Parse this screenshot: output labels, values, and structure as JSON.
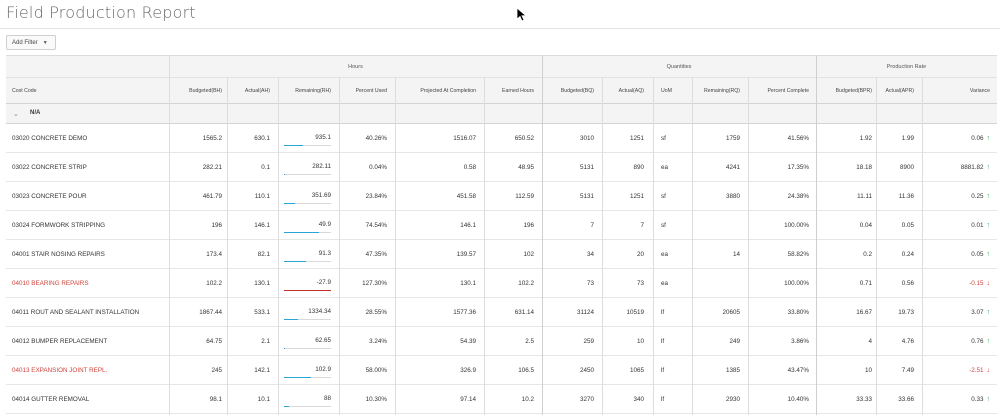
{
  "page": {
    "title": "Field Production Report"
  },
  "filter": {
    "label": "Add Filter"
  },
  "groups": {
    "hours": "Hours",
    "quantities": "Quantities",
    "production_rate": "Production Rate"
  },
  "columns": {
    "cost_code": "Cost Code",
    "budgeted_bh": "Budgeted(BH)",
    "actual_ah": "Actual(AH)",
    "remaining_rh": "Remaining(RH)",
    "percent_used": "Percent Used",
    "projected": "Projected At Completion",
    "earned": "Earned Hours",
    "budgeted_bq": "Budgeted(BQ)",
    "actual_aq": "Actual(AQ)",
    "uom": "UoM",
    "remaining_rq": "Remaining(RQ)",
    "percent_complete": "Percent Complete",
    "budgeted_bpr": "Budgeted(BPR)",
    "actual_apr": "Actual(APR)",
    "variance": "Variance"
  },
  "group_row": {
    "label": "N/A"
  },
  "rows": [
    {
      "cost_code": "03020 CONCRETE DEMO",
      "flag": false,
      "bh": "1565.2",
      "ah": "630.1",
      "rh": "935.1",
      "rh_pct": 40,
      "pct_used": "40.26%",
      "projected": "1516.07",
      "earned": "650.52",
      "bq": "3010",
      "aq": "1251",
      "uom": "sf",
      "rq": "1759",
      "pct_complete": "41.56%",
      "bpr": "1.92",
      "apr": "1.99",
      "variance": "0.06",
      "trend": "up"
    },
    {
      "cost_code": "03022 CONCRETE STRIP",
      "flag": false,
      "bh": "282.21",
      "ah": "0.1",
      "rh": "282.11",
      "rh_pct": 1,
      "pct_used": "0.04%",
      "projected": "0.58",
      "earned": "48.95",
      "bq": "5131",
      "aq": "890",
      "uom": "ea",
      "rq": "4241",
      "pct_complete": "17.35%",
      "bpr": "18.18",
      "apr": "8900",
      "variance": "8881.82",
      "trend": "up"
    },
    {
      "cost_code": "03023 CONCRETE POUR",
      "flag": false,
      "bh": "461.79",
      "ah": "110.1",
      "rh": "351.69",
      "rh_pct": 24,
      "pct_used": "23.84%",
      "projected": "451.58",
      "earned": "112.59",
      "bq": "5131",
      "aq": "1251",
      "uom": "sf",
      "rq": "3880",
      "pct_complete": "24.38%",
      "bpr": "11.11",
      "apr": "11.36",
      "variance": "0.25",
      "trend": "up"
    },
    {
      "cost_code": "03024 FORMWORK STRIPPING",
      "flag": false,
      "bh": "196",
      "ah": "146.1",
      "rh": "49.9",
      "rh_pct": 75,
      "pct_used": "74.54%",
      "projected": "146.1",
      "earned": "196",
      "bq": "7",
      "aq": "7",
      "uom": "sf",
      "rq": "",
      "pct_complete": "100.00%",
      "bpr": "0.04",
      "apr": "0.05",
      "variance": "0.01",
      "trend": "up"
    },
    {
      "cost_code": "04001 STAIR NOSING REPAIRS",
      "flag": false,
      "bh": "173.4",
      "ah": "82.1",
      "rh": "91.3",
      "rh_pct": 47,
      "pct_used": "47.35%",
      "projected": "139.57",
      "earned": "102",
      "bq": "34",
      "aq": "20",
      "uom": "ea",
      "rq": "14",
      "pct_complete": "58.82%",
      "bpr": "0.2",
      "apr": "0.24",
      "variance": "0.05",
      "trend": "up"
    },
    {
      "cost_code": "04010 BEARING REPAIRS",
      "flag": true,
      "bh": "102.2",
      "ah": "130.1",
      "rh": "-27.9",
      "rh_pct": 100,
      "pct_used": "127.30%",
      "projected": "130.1",
      "earned": "102.2",
      "bq": "73",
      "aq": "73",
      "uom": "ea",
      "rq": "",
      "pct_complete": "100.00%",
      "bpr": "0.71",
      "apr": "0.56",
      "variance": "-0.15",
      "trend": "down"
    },
    {
      "cost_code": "04011 ROUT AND SEALANT INSTALLATION",
      "flag": false,
      "bh": "1867.44",
      "ah": "533.1",
      "rh": "1334.34",
      "rh_pct": 29,
      "pct_used": "28.55%",
      "projected": "1577.36",
      "earned": "631.14",
      "bq": "31124",
      "aq": "10519",
      "uom": "lf",
      "rq": "20605",
      "pct_complete": "33.80%",
      "bpr": "16.67",
      "apr": "19.73",
      "variance": "3.07",
      "trend": "up"
    },
    {
      "cost_code": "04012 BUMPER REPLACEMENT",
      "flag": false,
      "bh": "64.75",
      "ah": "2.1",
      "rh": "62.65",
      "rh_pct": 3,
      "pct_used": "3.24%",
      "projected": "54.39",
      "earned": "2.5",
      "bq": "259",
      "aq": "10",
      "uom": "lf",
      "rq": "249",
      "pct_complete": "3.86%",
      "bpr": "4",
      "apr": "4.76",
      "variance": "0.76",
      "trend": "up"
    },
    {
      "cost_code": "04013 EXPANSION JOINT REPL.",
      "flag": true,
      "bh": "245",
      "ah": "142.1",
      "rh": "102.9",
      "rh_pct": 58,
      "pct_used": "58.00%",
      "projected": "326.9",
      "earned": "106.5",
      "bq": "2450",
      "aq": "1065",
      "uom": "lf",
      "rq": "1385",
      "pct_complete": "43.47%",
      "bpr": "10",
      "apr": "7.49",
      "variance": "-2.51",
      "trend": "down"
    },
    {
      "cost_code": "04014 GUTTER REMOVAL",
      "flag": false,
      "bh": "98.1",
      "ah": "10.1",
      "rh": "88",
      "rh_pct": 10,
      "pct_used": "10.30%",
      "projected": "97.14",
      "earned": "10.2",
      "bq": "3270",
      "aq": "340",
      "uom": "lf",
      "rq": "2930",
      "pct_complete": "10.40%",
      "bpr": "33.33",
      "apr": "33.66",
      "variance": "0.33",
      "trend": "up"
    }
  ],
  "colors": {
    "progress": "#2aa6d6",
    "over_budget": "#c0312a",
    "flag_text": "#d0443d",
    "trend_up": "#2fa75a",
    "trend_down": "#d0443d"
  }
}
